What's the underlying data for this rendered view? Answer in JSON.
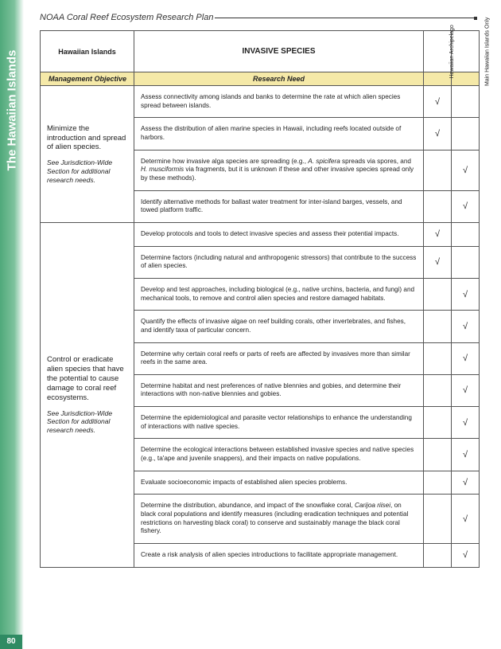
{
  "sideTab": "The Hawaiian Islands",
  "pageNumber": "80",
  "headerTitle": "NOAA Coral Reef Ecosystem Research Plan",
  "columns": {
    "region": "Hawaiian Islands",
    "topic": "INVASIVE SPECIES",
    "col3": "Hawaiian Archipelago",
    "col4": "Main Hawaiian Islands Only"
  },
  "subhead": {
    "left": "Management Objective",
    "right": "Research Need"
  },
  "check": "√",
  "groups": [
    {
      "objective": "Minimize the introduction and spread of alien species.",
      "note": "See Jurisdiction-Wide Section for additional research needs.",
      "rows": [
        {
          "need": "Assess connectivity among islands and banks to determine the rate at which alien species spread between islands.",
          "c3": true,
          "c4": false
        },
        {
          "need": "Assess the distribution of alien marine species in Hawaii, including reefs located outside of harbors.",
          "c3": true,
          "c4": false
        },
        {
          "need_html": "Determine how invasive alga species are spreading (e.g., <span class=\"ital\">A. spicifera</span> spreads via spores, and <span class=\"ital\">H. musciformis</span> via fragments, but it is unknown if these and other invasive species spread only by these methods).",
          "c3": false,
          "c4": true
        },
        {
          "need": "Identify alternative methods for ballast water treatment for inter-island barges, vessels, and towed platform traffic.",
          "c3": false,
          "c4": true
        }
      ]
    },
    {
      "objective": "Control or eradicate alien species that have the potential to cause damage to coral reef ecosystems.",
      "note": "See Jurisdiction-Wide Section for additional research needs.",
      "rows": [
        {
          "need": "Develop protocols and tools to detect invasive species and assess their potential impacts.",
          "c3": true,
          "c4": false
        },
        {
          "need": "Determine factors (including natural and anthropogenic stressors) that contribute to the success of alien species.",
          "c3": true,
          "c4": false
        },
        {
          "need": "Develop and test approaches, including biological (e.g., native urchins, bacteria, and fungi) and mechanical tools, to remove and control alien species and restore damaged habitats.",
          "c3": false,
          "c4": true
        },
        {
          "need": "Quantify the effects of invasive algae on reef building corals, other invertebrates, and fishes, and identify taxa of particular concern.",
          "c3": false,
          "c4": true
        },
        {
          "need": "Determine why certain coral reefs or parts of reefs are affected by invasives more than similar reefs in the same area.",
          "c3": false,
          "c4": true
        },
        {
          "need": "Determine habitat and nest preferences of native blennies and gobies, and determine their interactions with non-native blennies and gobies.",
          "c3": false,
          "c4": true
        },
        {
          "need": "Determine the epidemiological and parasite vector relationships to enhance the understanding of interactions with native species.",
          "c3": false,
          "c4": true
        },
        {
          "need": "Determine the ecological interactions between established invasive species and native species (e.g., ta'ape and juvenile snappers), and their impacts on native populations.",
          "c3": false,
          "c4": true
        },
        {
          "need": "Evaluate socioeconomic impacts of established alien species problems.",
          "c3": false,
          "c4": true
        },
        {
          "need_html": "Determine the distribution, abundance, and impact of the snowflake coral, <span class=\"ital\">Carijoa riisei</span>, on black coral populations and identify measures (including eradication techniques and potential restrictions on harvesting black coral) to conserve and sustainably manage the black coral fishery.",
          "c3": false,
          "c4": true
        },
        {
          "need": "Create a risk analysis of alien species introductions to facilitate appropriate management.",
          "c3": false,
          "c4": true
        }
      ]
    }
  ]
}
